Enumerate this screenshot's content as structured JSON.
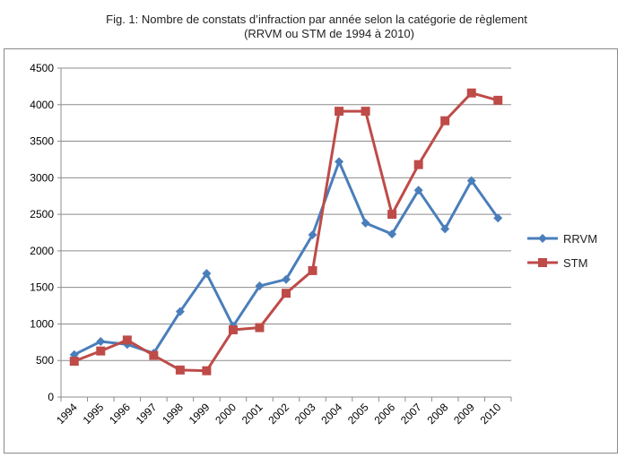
{
  "title_line1": "Fig. 1: Nombre de constats d’infraction par année selon la catégorie de règlement",
  "title_line2": "(RRVM ou STM de 1994 à 2010)",
  "chart_data": {
    "type": "line",
    "title": "Fig. 1: Nombre de constats d’infraction par année selon la catégorie de règlement (RRVM ou STM de 1994 à 2010)",
    "xlabel": "",
    "ylabel": "",
    "categories": [
      "1994",
      "1995",
      "1996",
      "1997",
      "1998",
      "1999",
      "2000",
      "2001",
      "2002",
      "2003",
      "2004",
      "2005",
      "2006",
      "2007",
      "2008",
      "2009",
      "2010"
    ],
    "yticks": [
      0,
      500,
      1000,
      1500,
      2000,
      2500,
      3000,
      3500,
      4000,
      4500
    ],
    "ylim": [
      0,
      4500
    ],
    "grid": true,
    "legend_position": "right",
    "series": [
      {
        "name": "RRVM",
        "color": "#4a7ebb",
        "marker": "diamond",
        "values": [
          580,
          760,
          720,
          600,
          1170,
          1690,
          970,
          1520,
          1610,
          2220,
          3220,
          2380,
          2230,
          2830,
          2300,
          2960,
          2450
        ]
      },
      {
        "name": "STM",
        "color": "#be4b48",
        "marker": "square",
        "values": [
          490,
          630,
          780,
          570,
          370,
          360,
          920,
          950,
          1420,
          1730,
          3910,
          3910,
          2500,
          3180,
          3780,
          4160,
          4060
        ]
      }
    ]
  }
}
